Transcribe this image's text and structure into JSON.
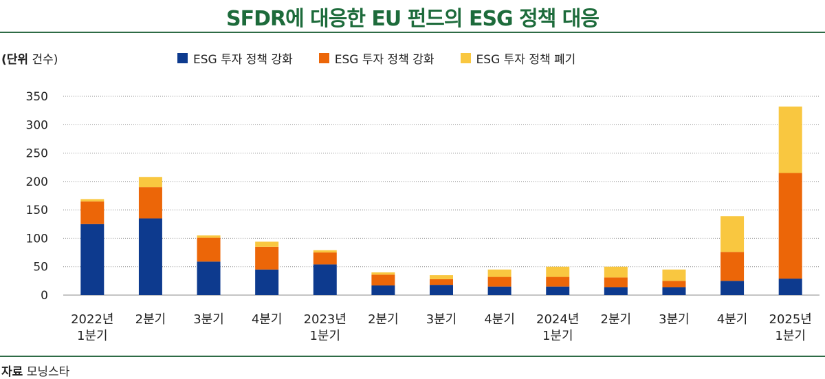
{
  "title": "SFDR에 대응한 EU 펀드의 ESG 정책 대응",
  "unit_label": "(단위",
  "unit_value": "건수)",
  "source_label": "자료",
  "source_value": "모닝스타",
  "chart_data": {
    "type": "bar",
    "stacked": true,
    "categories": [
      [
        "2022년",
        "1분기"
      ],
      [
        "2분기"
      ],
      [
        "3분기"
      ],
      [
        "4분기"
      ],
      [
        "2023년",
        "1분기"
      ],
      [
        "2분기"
      ],
      [
        "3분기"
      ],
      [
        "4분기"
      ],
      [
        "2024년",
        "1분기"
      ],
      [
        "2분기"
      ],
      [
        "3분기"
      ],
      [
        "4분기"
      ],
      [
        "2025년",
        "1분기"
      ]
    ],
    "series": [
      {
        "name": "ESG 투자 정책 강화",
        "color": "#0d3a8e",
        "values": [
          125,
          135,
          59,
          45,
          54,
          17,
          18,
          15,
          15,
          14,
          14,
          25,
          29
        ]
      },
      {
        "name": "ESG 투자 정책 강화",
        "color": "#ec6608",
        "values": [
          40,
          55,
          42,
          40,
          21,
          19,
          10,
          17,
          17,
          17,
          11,
          51,
          186
        ]
      },
      {
        "name": "ESG 투자 정책 폐기",
        "color": "#f9c740",
        "values": [
          4,
          18,
          4,
          9,
          4,
          4,
          7,
          13,
          18,
          19,
          20,
          63,
          117
        ]
      }
    ],
    "yticks": [
      0,
      50,
      100,
      150,
      200,
      250,
      300,
      350
    ],
    "ylim": [
      0,
      350
    ],
    "grid": true,
    "legend_position": "top-center"
  }
}
